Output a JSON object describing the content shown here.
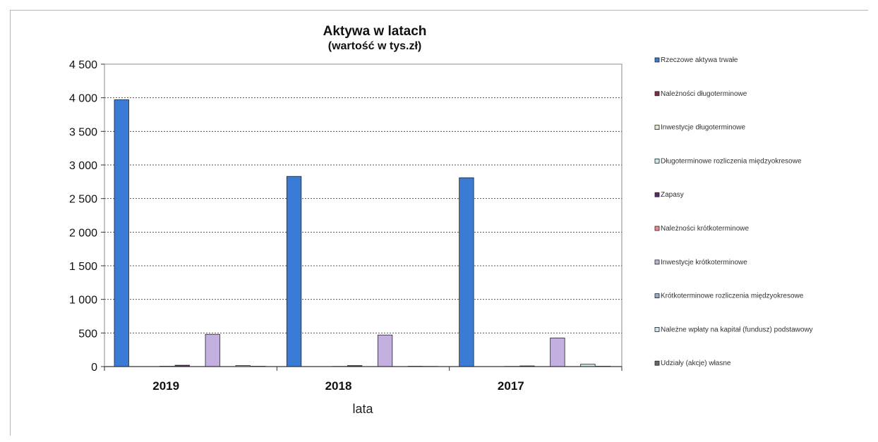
{
  "chart_data": {
    "type": "bar",
    "title": "Aktywa w latach",
    "subtitle": "(wartość w tys.zł)",
    "xlabel": "lata",
    "ylabel": "",
    "ylim": [
      0,
      4500
    ],
    "yticks": [
      0,
      500,
      1000,
      1500,
      2000,
      2500,
      3000,
      3500,
      4000,
      4500
    ],
    "ytick_labels": [
      "0",
      "500",
      "1 000",
      "1 500",
      "2 000",
      "2 500",
      "3 000",
      "3 500",
      "4 000",
      "4 500"
    ],
    "categories": [
      "2019",
      "2018",
      "2017"
    ],
    "grid": true,
    "legend_position": "right",
    "series": [
      {
        "name": "Rzeczowe aktywa trwałe",
        "color": "#3a7bd5",
        "values": [
          3970,
          2830,
          2810
        ]
      },
      {
        "name": "Należności długoterminowe",
        "color": "#7a2f4c",
        "values": [
          0,
          0,
          0
        ]
      },
      {
        "name": "Inwestycje długoterminowe",
        "color": "#e8e8c8",
        "values": [
          0,
          0,
          0
        ]
      },
      {
        "name": "Długoterminowe rozliczenia międzyokresowe",
        "color": "#c8ecec",
        "values": [
          5,
          3,
          3
        ]
      },
      {
        "name": "Zapasy",
        "color": "#5a2a6a",
        "values": [
          20,
          15,
          10
        ]
      },
      {
        "name": "Należności krótkoterminowe",
        "color": "#ef8a8a",
        "values": [
          0,
          0,
          0
        ]
      },
      {
        "name": "Inwestycje krótkoterminowe",
        "color": "#c4b0e0",
        "values": [
          480,
          470,
          425
        ]
      },
      {
        "name": "Krótkoterminowe rozliczenia międzyokresowe",
        "color": "#9aa8d8",
        "values": [
          0,
          0,
          0
        ]
      },
      {
        "name": "Należne wpłaty na kapitał (fundusz) podstawowy",
        "color": "#c8e6ec",
        "values": [
          15,
          5,
          35
        ]
      },
      {
        "name": "Udziały (akcje) własne",
        "color": "#6a6a6a",
        "values": [
          5,
          3,
          5
        ]
      }
    ]
  }
}
